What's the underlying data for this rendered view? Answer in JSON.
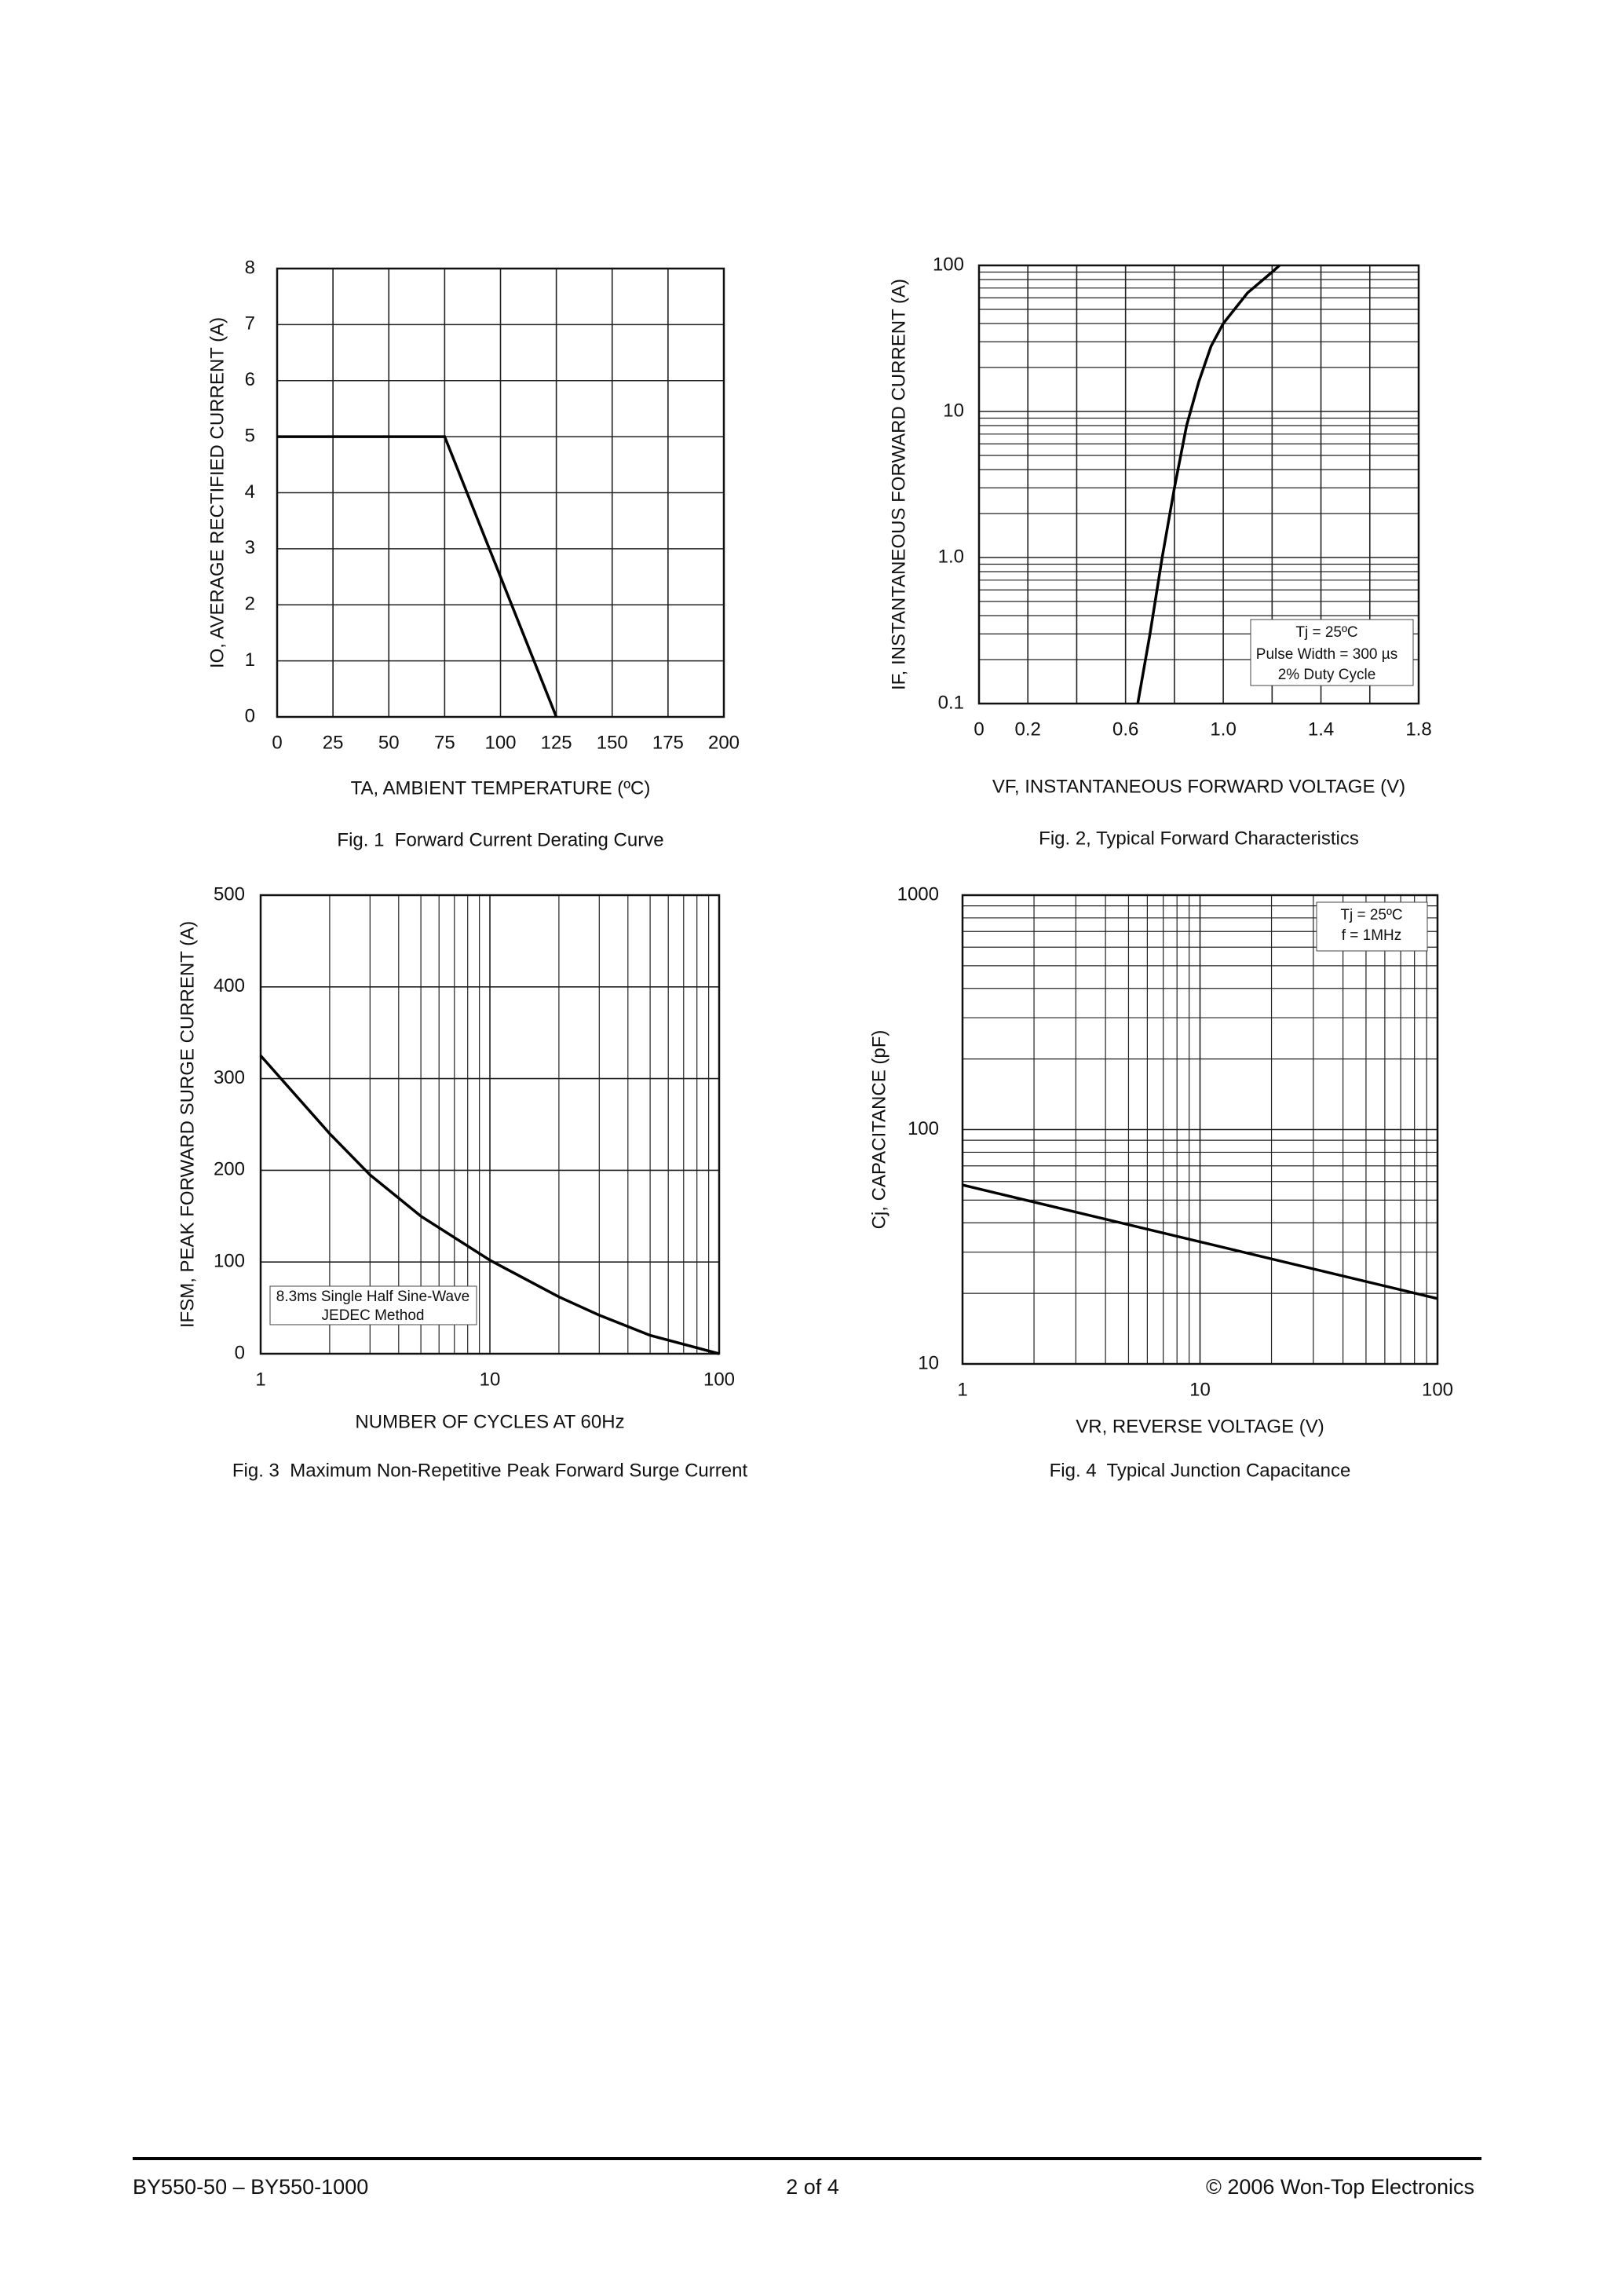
{
  "chart_data": [
    {
      "type": "line",
      "title": "Fig. 1  Forward Current Derating Curve",
      "xlabel": "TA, AMBIENT TEMPERATURE (ºC)",
      "ylabel": "IO, AVERAGE RECTIFIED CURRENT (A)",
      "x": [
        0,
        75,
        125
      ],
      "values": [
        5,
        5,
        0
      ],
      "color": "#000000",
      "xlim": [
        0,
        200
      ],
      "xticks": [
        0,
        25,
        50,
        75,
        100,
        125,
        150,
        175,
        200
      ],
      "ylim": [
        0,
        8
      ],
      "yticks": [
        0,
        1,
        2,
        3,
        4,
        5,
        6,
        7,
        8
      ],
      "grid": true
    },
    {
      "type": "line",
      "title": "Fig. 2, Typical Forward Characteristics",
      "xlabel": "VF, INSTANTANEOUS FORWARD VOLTAGE (V)",
      "ylabel": "IF, INSTANTANEOUS FORWARD CURRENT (A)",
      "x": [
        0.65,
        0.7,
        0.75,
        0.8,
        0.85,
        0.9,
        0.95,
        1.0,
        1.1,
        1.2,
        1.23
      ],
      "values": [
        0.1,
        0.3,
        1.0,
        3,
        8,
        16,
        28,
        40,
        65,
        90,
        100
      ],
      "color": "#000000",
      "xlim": [
        0,
        1.8
      ],
      "xticks": [
        0,
        0.2,
        0.6,
        {
          "value": 1,
          "label": "1.0"
        },
        1.4,
        1.8
      ],
      "xminor": [
        0.4,
        0.8,
        1.2,
        1.6
      ],
      "ylim": [
        0.1,
        100
      ],
      "yticks": [
        0.1,
        {
          "value": 1,
          "label": "1.0"
        },
        10,
        100
      ],
      "yscale": "log",
      "grid": true,
      "annotations": [
        "Tj = 25ºC",
        "Pulse Width = 300 µs",
        "2% Duty Cycle"
      ]
    },
    {
      "type": "line",
      "title": "Fig. 3  Maximum Non-Repetitive Peak Forward Surge Current",
      "xlabel": "NUMBER OF CYCLES AT 60Hz",
      "ylabel": "IFSM, PEAK FORWARD SURGE CURRENT (A)",
      "x": [
        1,
        2,
        3,
        5,
        10,
        20,
        30,
        50,
        100
      ],
      "values": [
        325,
        240,
        195,
        150,
        102,
        62,
        42,
        20,
        0
      ],
      "color": "#000000",
      "xlim": [
        1,
        100
      ],
      "xticks": [
        1,
        10,
        100
      ],
      "xscale": "log",
      "ylim": [
        0,
        500
      ],
      "yticks": [
        0,
        100,
        200,
        300,
        400,
        500
      ],
      "grid": true,
      "annotations": [
        "8.3ms Single Half Sine-Wave",
        "JEDEC Method"
      ]
    },
    {
      "type": "line",
      "title": "Fig. 4  Typical Junction Capacitance",
      "xlabel": "VR, REVERSE VOLTAGE (V)",
      "ylabel": "Cj, CAPACITANCE (pF)",
      "x": [
        1,
        100
      ],
      "values": [
        58,
        19
      ],
      "color": "#000000",
      "xlim": [
        1,
        100
      ],
      "xticks": [
        1,
        10,
        100
      ],
      "xscale": "log",
      "ylim": [
        10,
        1000
      ],
      "yticks": [
        10,
        100,
        1000
      ],
      "yscale": "log",
      "grid": true,
      "annotations": [
        "Tj = 25ºC",
        "f = 1MHz"
      ]
    }
  ],
  "footer": {
    "left": "BY550-50 – BY550-1000",
    "center": "2 of 4",
    "right": "© 2006 Won-Top Electronics"
  }
}
